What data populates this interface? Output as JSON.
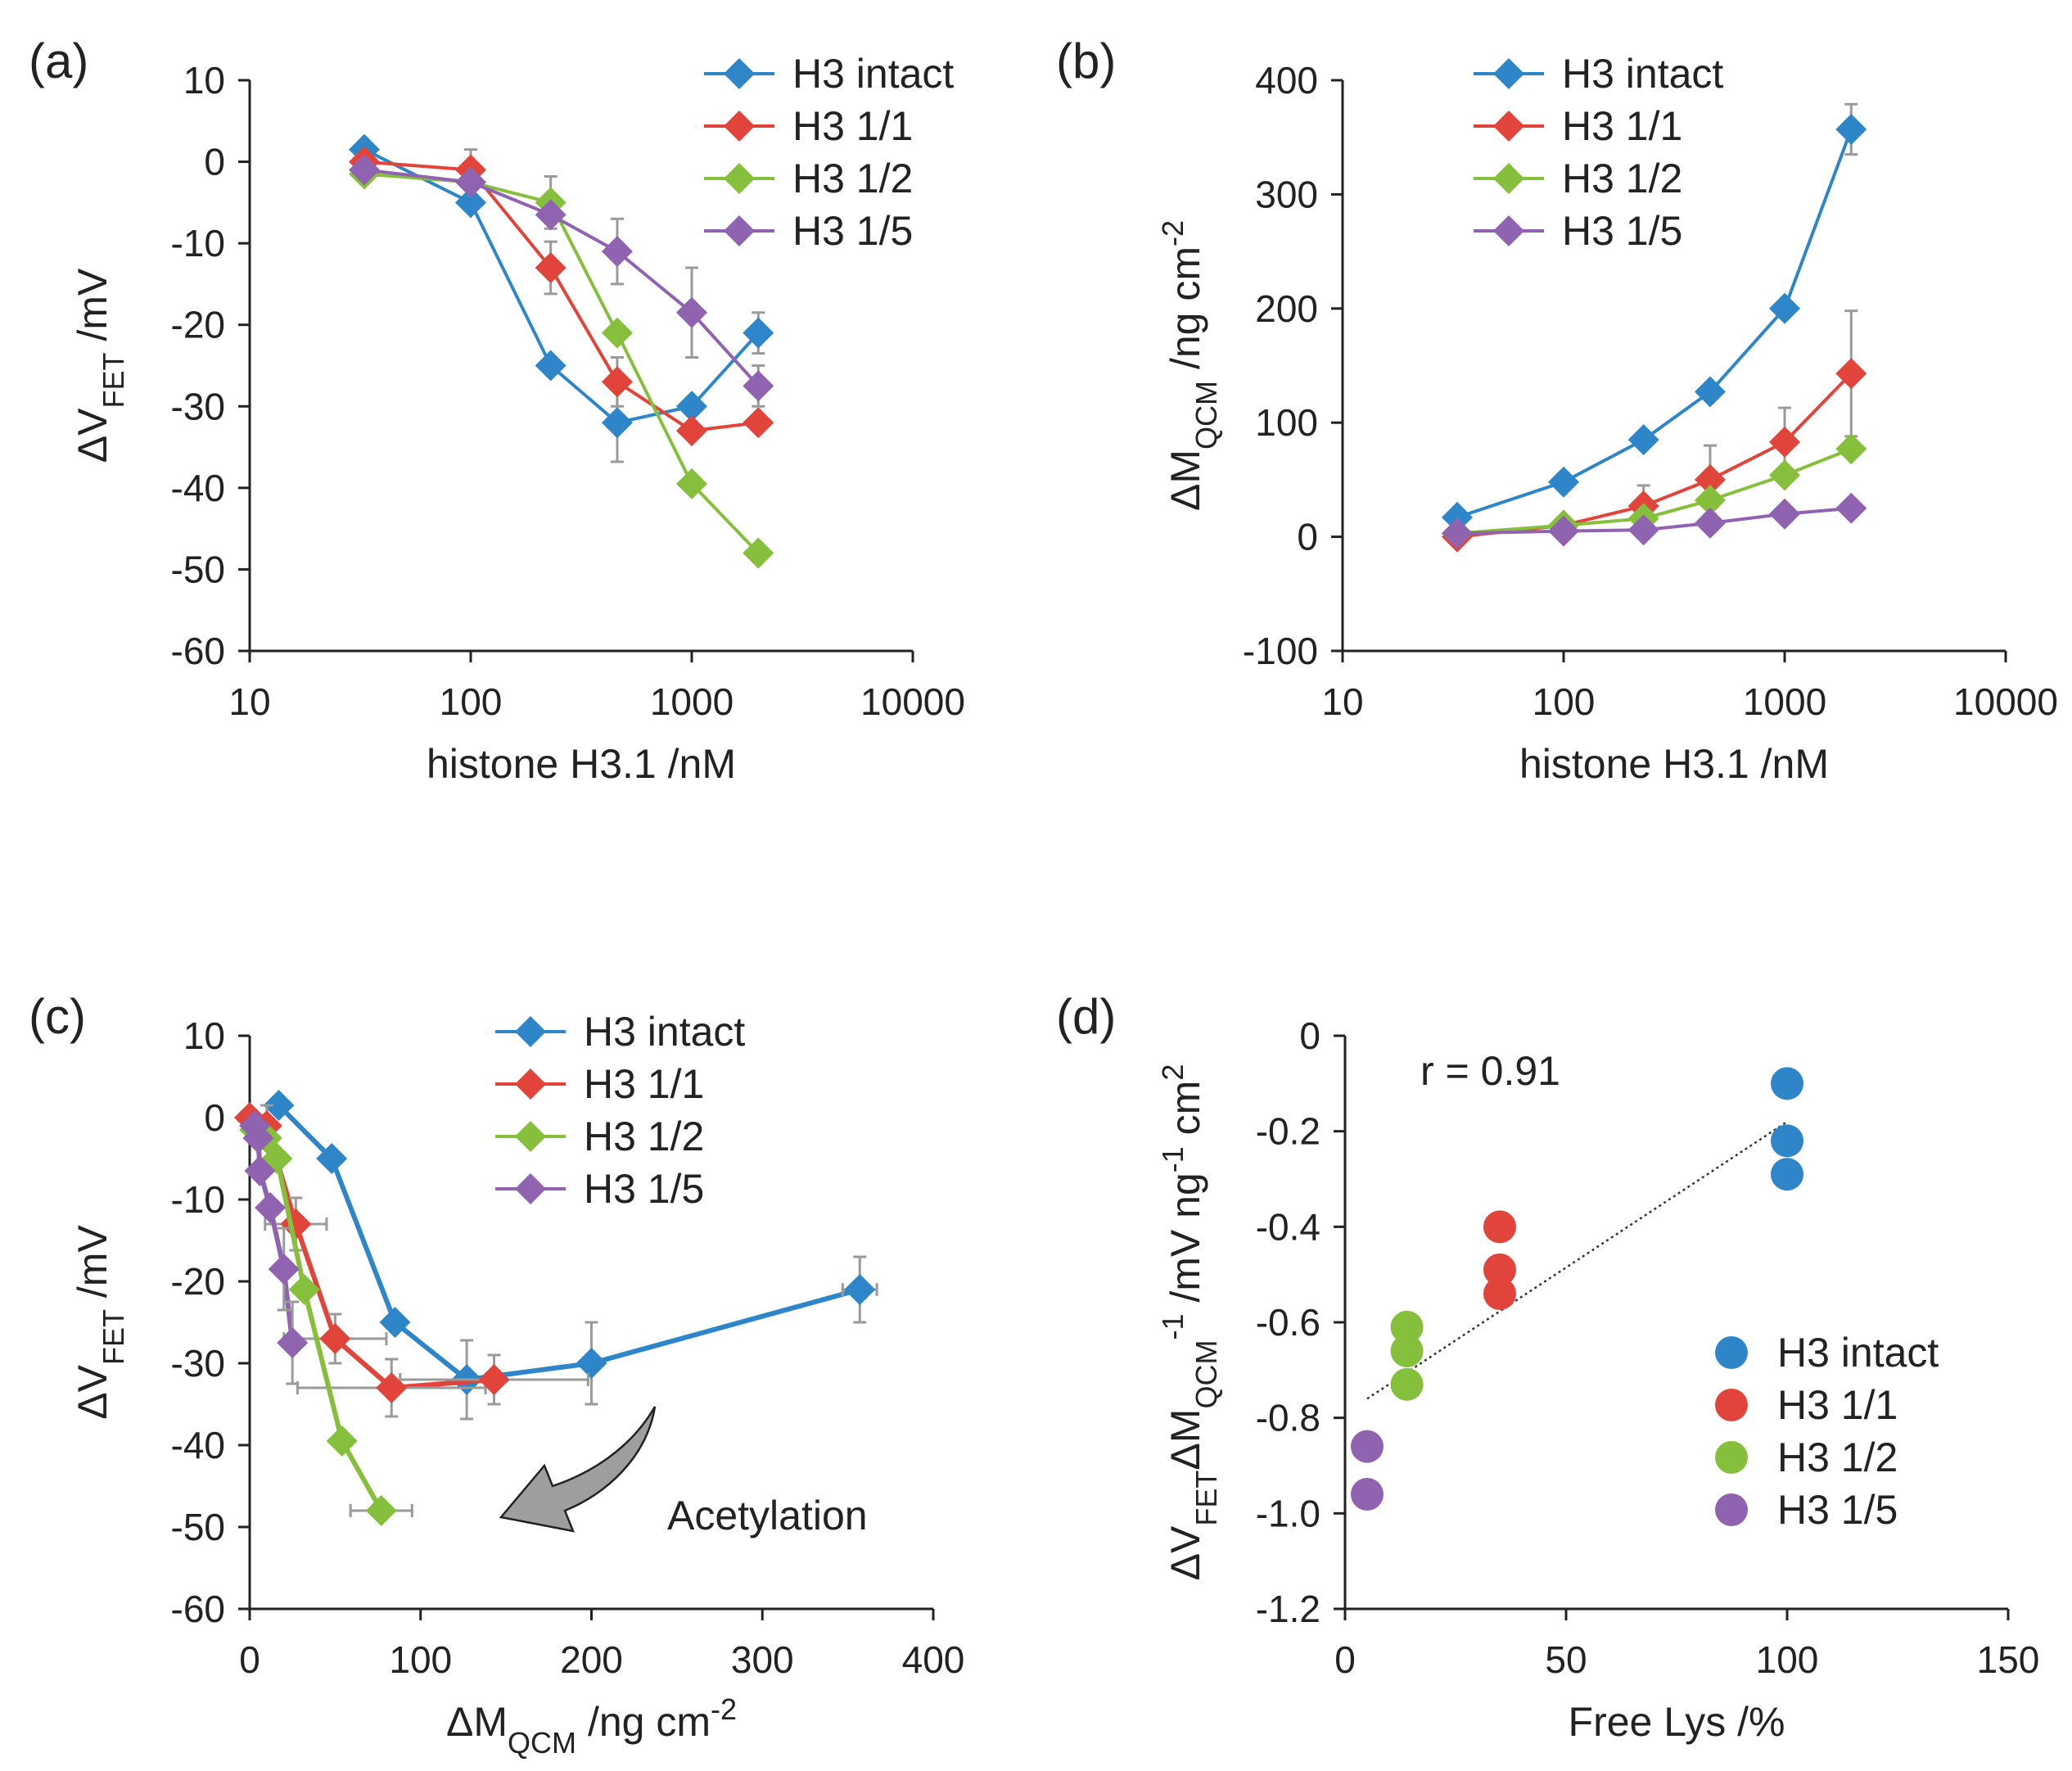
{
  "colors": {
    "H3 intact": "#2e86c8",
    "H3 1/1": "#e0443a",
    "H3 1/2": "#86bf3c",
    "H3 1/5": "#8f63b0",
    "error_bar": "#9a9a9a",
    "axis": "#222222",
    "arrow": "#9e9e9e"
  },
  "chart_data": [
    {
      "id": "a",
      "panel_label": "(a)",
      "type": "line",
      "xscale": "log",
      "xlabel": "histone H3.1  /nM",
      "ylabel": "ΔVFET /mV",
      "ylabel_parts": {
        "main": "ΔV",
        "sub": "FET",
        "rest": " /mV"
      },
      "xlim": [
        10,
        10000
      ],
      "ylim": [
        -60,
        10
      ],
      "xticks": [
        10,
        100,
        1000,
        10000
      ],
      "yticks": [
        10,
        0,
        -10,
        -20,
        -30,
        -40,
        -50,
        -60
      ],
      "legend_position": "top-right",
      "marker": "diamond",
      "series": [
        {
          "name": "H3 intact",
          "x": [
            33,
            100,
            230,
            460,
            1000,
            2000
          ],
          "y": [
            1.5,
            -5,
            -25,
            -32,
            -30,
            -21
          ],
          "err": [
            0,
            0,
            0,
            4.8,
            0,
            2.5
          ]
        },
        {
          "name": "H3 1/1",
          "x": [
            33,
            100,
            230,
            460,
            1000,
            2000
          ],
          "y": [
            0,
            -1,
            -13,
            -27,
            -33,
            -32
          ],
          "err": [
            0,
            2.5,
            3.2,
            3.0,
            0,
            0
          ]
        },
        {
          "name": "H3 1/2",
          "x": [
            33,
            100,
            230,
            460,
            1000,
            2000
          ],
          "y": [
            -1.5,
            -2.5,
            -5,
            -21,
            -39.5,
            -48
          ],
          "err": [
            0,
            0,
            3.2,
            0,
            0,
            0
          ]
        },
        {
          "name": "H3 1/5",
          "x": [
            33,
            100,
            230,
            460,
            1000,
            2000
          ],
          "y": [
            -1,
            -2.5,
            -6.5,
            -11,
            -18.5,
            -27.5
          ],
          "err": [
            0,
            0,
            0,
            4.0,
            5.5,
            2.5
          ]
        }
      ]
    },
    {
      "id": "b",
      "panel_label": "(b)",
      "type": "line",
      "xscale": "log",
      "xlabel": "histone H3.1  /nM",
      "ylabel": "ΔMQCM /ng cm-2",
      "ylabel_parts": {
        "main": "ΔM",
        "sub": "QCM",
        "rest": " /ng cm",
        "sup": "-2"
      },
      "xlim": [
        10,
        10000
      ],
      "ylim": [
        -100,
        400
      ],
      "xticks": [
        10,
        100,
        1000,
        10000
      ],
      "yticks": [
        400,
        300,
        200,
        100,
        0,
        -100
      ],
      "legend_position": "top-left",
      "marker": "diamond",
      "series": [
        {
          "name": "H3 intact",
          "x": [
            33,
            100,
            230,
            460,
            1000,
            2000
          ],
          "y": [
            17,
            48,
            85,
            127,
            200,
            357
          ],
          "err": [
            0,
            0,
            0,
            0,
            0,
            22
          ]
        },
        {
          "name": "H3 1/1",
          "x": [
            33,
            100,
            230,
            460,
            1000,
            2000
          ],
          "y": [
            0,
            10,
            27,
            50,
            83,
            143
          ],
          "err": [
            0,
            0,
            18,
            30,
            30,
            55
          ]
        },
        {
          "name": "H3 1/2",
          "x": [
            33,
            100,
            230,
            460,
            1000,
            2000
          ],
          "y": [
            3,
            10,
            16,
            32,
            54,
            77
          ],
          "err": [
            0,
            0,
            0,
            0,
            0,
            0
          ]
        },
        {
          "name": "H3 1/5",
          "x": [
            33,
            100,
            230,
            460,
            1000,
            2000
          ],
          "y": [
            3,
            5,
            6,
            12,
            20,
            25
          ],
          "err": [
            0,
            0,
            0,
            0,
            0,
            0
          ]
        }
      ]
    },
    {
      "id": "c",
      "panel_label": "(c)",
      "type": "line",
      "xscale": "linear",
      "xlabel": "ΔMQCM /ng cm-2",
      "xlabel_parts": {
        "main": "ΔM",
        "sub": "QCM",
        "rest": " /ng cm",
        "sup": "-2"
      },
      "ylabel": "ΔVFET /mV",
      "ylabel_parts": {
        "main": "ΔV",
        "sub": "FET",
        "rest": " /mV"
      },
      "xlim": [
        0,
        400
      ],
      "ylim": [
        -60,
        10
      ],
      "xticks": [
        0,
        100,
        200,
        300,
        400
      ],
      "yticks": [
        10,
        0,
        -10,
        -20,
        -30,
        -40,
        -50,
        -60
      ],
      "legend_position": "top-right",
      "marker": "diamond",
      "annotation": {
        "text": "Acetylation"
      },
      "series": [
        {
          "name": "H3 intact",
          "x": [
            17,
            48,
            85,
            127,
            200,
            357
          ],
          "y": [
            1.5,
            -5,
            -25,
            -32,
            -30,
            -21
          ],
          "err_y": [
            0,
            0,
            0,
            4.8,
            5,
            4
          ],
          "err_x": [
            0,
            0,
            0,
            0,
            0,
            10
          ]
        },
        {
          "name": "H3 1/1",
          "x": [
            0,
            10,
            27,
            50,
            83,
            143
          ],
          "y": [
            0,
            -1,
            -13,
            -27,
            -33,
            -32
          ],
          "err_y": [
            0,
            2.5,
            3.2,
            3.0,
            3.5,
            3.0
          ],
          "err_x": [
            0,
            0,
            18,
            30,
            55,
            55
          ]
        },
        {
          "name": "H3 1/2",
          "x": [
            3,
            10,
            16,
            32,
            54,
            77
          ],
          "y": [
            -1.5,
            -2.5,
            -5,
            -21,
            -39.5,
            -48
          ],
          "err_y": [
            0,
            0,
            0,
            0,
            0,
            0
          ],
          "err_x": [
            0,
            0,
            0,
            0,
            0,
            18
          ]
        },
        {
          "name": "H3 1/5",
          "x": [
            3,
            5,
            6,
            12,
            20,
            25
          ],
          "y": [
            -1,
            -2.5,
            -6.5,
            -11,
            -18.5,
            -27.5
          ],
          "err_y": [
            0,
            0,
            0,
            0,
            5,
            5
          ],
          "err_x": [
            0,
            0,
            0,
            0,
            0,
            0
          ]
        }
      ]
    },
    {
      "id": "d",
      "panel_label": "(d)",
      "type": "scatter",
      "xscale": "linear",
      "xlabel": "Free Lys /%",
      "ylabel": "ΔVFETΔMQCM-1 /mV ng-1 cm2",
      "xlim": [
        0,
        150
      ],
      "ylim": [
        -1.2,
        0
      ],
      "xticks": [
        0,
        50,
        100,
        150
      ],
      "yticks": [
        "0",
        "-0.2",
        "-0.4",
        "-0.6",
        "-0.8",
        "-1.0",
        "-1.2"
      ],
      "legend_position": "bottom-right",
      "marker": "circle",
      "annotation": {
        "text": "r = 0.91"
      },
      "trendline": {
        "x": [
          5,
          100
        ],
        "y": [
          -0.76,
          -0.18
        ]
      },
      "series": [
        {
          "name": "H3 intact",
          "x": [
            100,
            100,
            100
          ],
          "y": [
            -0.1,
            -0.22,
            -0.29
          ]
        },
        {
          "name": "H3 1/1",
          "x": [
            35,
            35,
            35
          ],
          "y": [
            -0.4,
            -0.49,
            -0.54
          ]
        },
        {
          "name": "H3 1/2",
          "x": [
            14,
            14,
            14
          ],
          "y": [
            -0.61,
            -0.66,
            -0.73
          ]
        },
        {
          "name": "H3 1/5",
          "x": [
            5,
            5
          ],
          "y": [
            -0.86,
            -0.96
          ]
        }
      ]
    }
  ]
}
